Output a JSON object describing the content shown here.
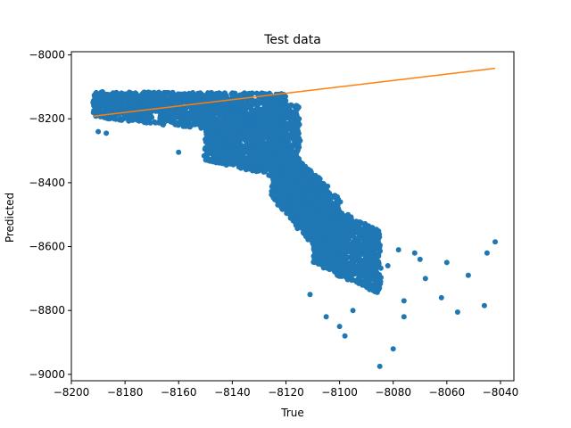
{
  "chart_data": {
    "type": "scatter",
    "title": "Test data",
    "xlabel": "True",
    "ylabel": "Predicted",
    "xlim": [
      -8200,
      -8035
    ],
    "ylim": [
      -9020,
      -7990
    ],
    "xticks": [
      -8200,
      -8180,
      -8160,
      -8140,
      -8120,
      -8100,
      -8080,
      -8060,
      -8040
    ],
    "yticks": [
      -8000,
      -8200,
      -8400,
      -8600,
      -8800,
      -9000
    ],
    "grid": false,
    "series": [
      {
        "kind": "points",
        "color": "#1f77b4",
        "clusters": [
          {
            "x": [
              -8192,
              -8120
            ],
            "y_at_start": [
              -8195,
              -8115
            ],
            "y_at_end": [
              -8260,
              -8120
            ],
            "n": 1400
          },
          {
            "x": [
              -8150,
              -8115
            ],
            "y_at_start": [
              -8330,
              -8210
            ],
            "y_at_end": [
              -8400,
              -8150
            ],
            "n": 1600
          },
          {
            "x": [
              -8125,
              -8100
            ],
            "y_at_start": [
              -8450,
              -8250
            ],
            "y_at_end": [
              -8700,
              -8450
            ],
            "n": 1800
          },
          {
            "x": [
              -8110,
              -8085
            ],
            "y_at_start": [
              -8650,
              -8450
            ],
            "y_at_end": [
              -8750,
              -8550
            ],
            "n": 1000
          }
        ],
        "outliers": [
          {
            "x": -8190,
            "y": -8240
          },
          {
            "x": -8187,
            "y": -8245
          },
          {
            "x": -8160,
            "y": -8305
          },
          {
            "x": -8085,
            "y": -8975
          },
          {
            "x": -8080,
            "y": -8920
          },
          {
            "x": -8076,
            "y": -8820
          },
          {
            "x": -8076,
            "y": -8770
          },
          {
            "x": -8070,
            "y": -8640
          },
          {
            "x": -8068,
            "y": -8700
          },
          {
            "x": -8062,
            "y": -8760
          },
          {
            "x": -8060,
            "y": -8650
          },
          {
            "x": -8056,
            "y": -8805
          },
          {
            "x": -8052,
            "y": -8690
          },
          {
            "x": -8046,
            "y": -8785
          },
          {
            "x": -8045,
            "y": -8620
          },
          {
            "x": -8042,
            "y": -8585
          },
          {
            "x": -8090,
            "y": -8600
          },
          {
            "x": -8088,
            "y": -8650
          },
          {
            "x": -8095,
            "y": -8800
          },
          {
            "x": -8098,
            "y": -8880
          },
          {
            "x": -8100,
            "y": -8850
          },
          {
            "x": -8093,
            "y": -8700
          },
          {
            "x": -8082,
            "y": -8660
          },
          {
            "x": -8078,
            "y": -8610
          },
          {
            "x": -8072,
            "y": -8620
          },
          {
            "x": -8111,
            "y": -8750
          },
          {
            "x": -8105,
            "y": -8820
          }
        ]
      },
      {
        "kind": "line",
        "color": "#ff7f0e",
        "x": [
          -8192,
          -8042
        ],
        "y": [
          -8192,
          -8042
        ]
      }
    ]
  }
}
